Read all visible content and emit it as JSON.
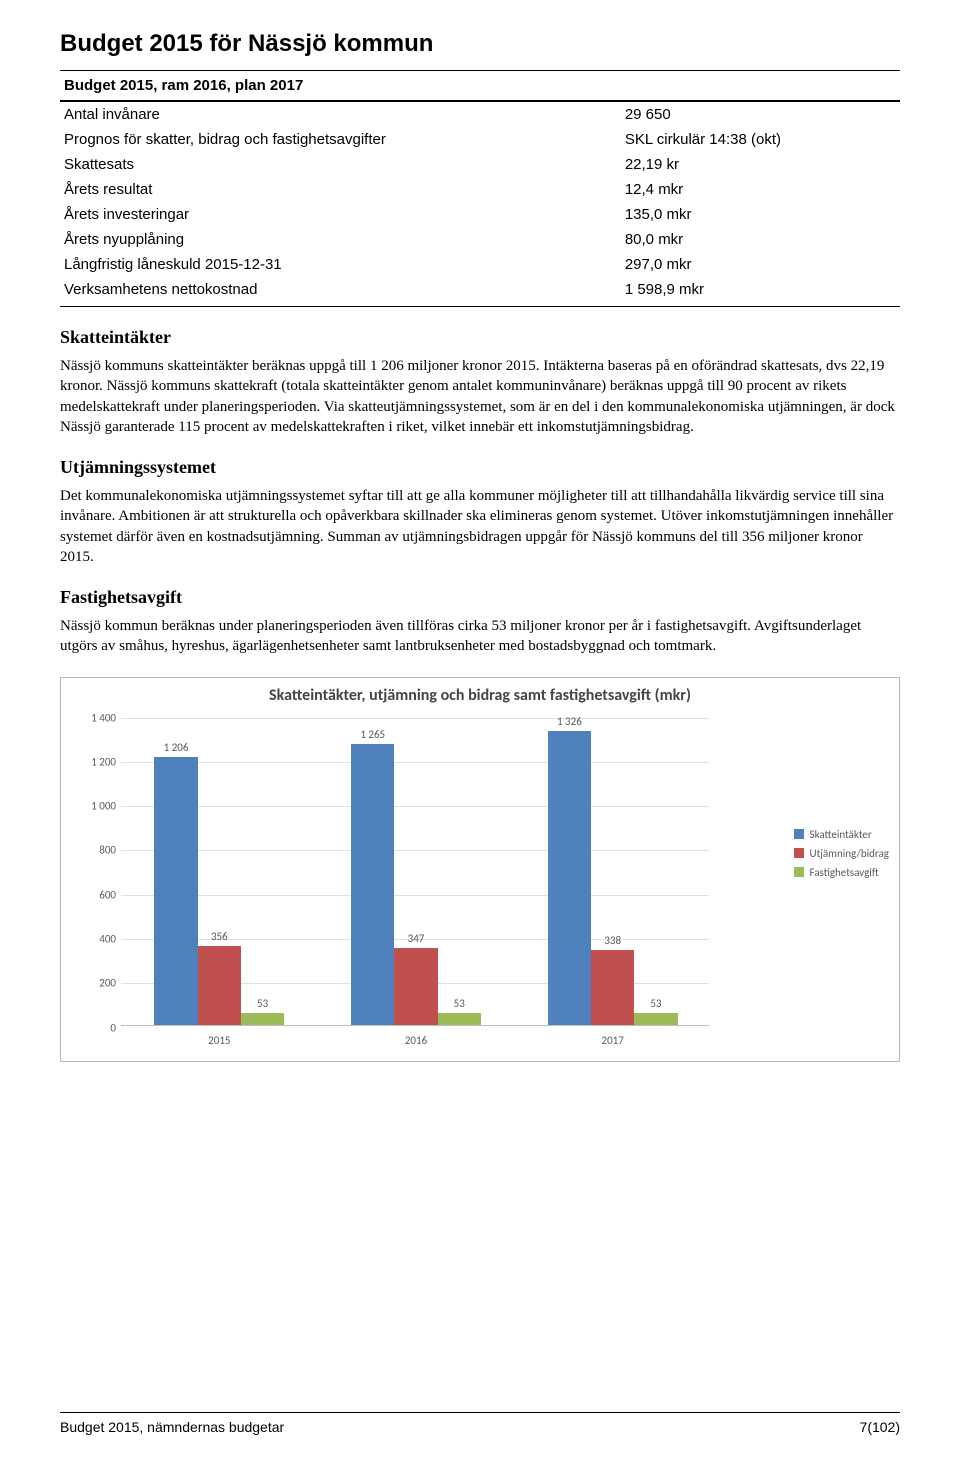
{
  "page_title": "Budget 2015 för Nässjö kommun",
  "table": {
    "header": "Budget 2015, ram 2016, plan 2017",
    "rows": [
      {
        "label": "Antal invånare",
        "value": "29 650"
      },
      {
        "label": "Prognos för skatter, bidrag och fastighetsavgifter",
        "value": "SKL cirkulär 14:38 (okt)"
      },
      {
        "label": "Skattesats",
        "value": "22,19 kr"
      },
      {
        "label": "Årets resultat",
        "value": "12,4 mkr"
      },
      {
        "label": "Årets investeringar",
        "value": "135,0 mkr"
      },
      {
        "label": "Årets nyupplåning",
        "value": "80,0 mkr"
      },
      {
        "label": "Långfristig låneskuld 2015-12-31",
        "value": "297,0 mkr"
      },
      {
        "label": "Verksamhetens nettokostnad",
        "value": "1 598,9 mkr"
      }
    ]
  },
  "sections": {
    "s1_heading": "Skatteintäkter",
    "s1_body": "Nässjö kommuns skatteintäkter beräknas uppgå till 1 206 miljoner kronor 2015. Intäkterna baseras på en oförändrad skattesats, dvs 22,19 kronor. Nässjö kommuns skattekraft (totala skatteintäkter genom antalet kommuninvånare) beräknas uppgå till 90 procent av rikets medelskattekraft under planeringsperioden. Via skatteutjämningssystemet, som är en del i den kommunalekonomiska utjämningen, är dock Nässjö garanterade 115 procent av medelskattekraften i riket, vilket innebär ett inkomstutjämningsbidrag.",
    "s2_heading": "Utjämningssystemet",
    "s2_body": "Det kommunalekonomiska utjämningssystemet syftar till att ge alla kommuner möjligheter till att tillhandahålla likvärdig service till sina invånare. Ambitionen är att strukturella och opåverkbara skillnader ska elimineras genom systemet. Utöver inkomstutjämningen innehåller systemet därför även en kostnadsutjämning. Summan av utjämningsbidragen uppgår för Nässjö kommuns del till 356 miljoner kronor 2015.",
    "s3_heading": "Fastighetsavgift",
    "s3_body": "Nässjö kommun beräknas under planeringsperioden även tillföras cirka 53 miljoner kronor per år i fastighetsavgift. Avgiftsunderlaget utgörs av småhus, hyreshus, ägarlägenhetsenheter samt lantbruksenheter med bostadsbyggnad och tomtmark."
  },
  "chart": {
    "type": "bar",
    "title": "Skatteintäkter, utjämning och bidrag samt fastighetsavgift (mkr)",
    "categories": [
      "2015",
      "2016",
      "2017"
    ],
    "series": [
      {
        "name": "Skatteintäkter",
        "color": "#4f81bd",
        "values": [
          1206,
          1265,
          1326
        ]
      },
      {
        "name": "Utjämning/bidrag",
        "color": "#c0504d",
        "values": [
          356,
          347,
          338
        ]
      },
      {
        "name": "Fastighetsavgift",
        "color": "#9bbb59",
        "values": [
          53,
          53,
          53
        ]
      }
    ],
    "ylim": [
      0,
      1400
    ],
    "ytick_step": 200,
    "grid_color": "#e0e0e0",
    "axis_color": "#bfbfbf",
    "label_color": "#595959",
    "title_color": "#454545",
    "background_color": "#ffffff",
    "bar_width": 0.22,
    "title_fontsize": 16,
    "label_fontsize": 11
  },
  "footer": {
    "left": "Budget 2015, nämndernas budgetar",
    "right": "7(102)"
  }
}
